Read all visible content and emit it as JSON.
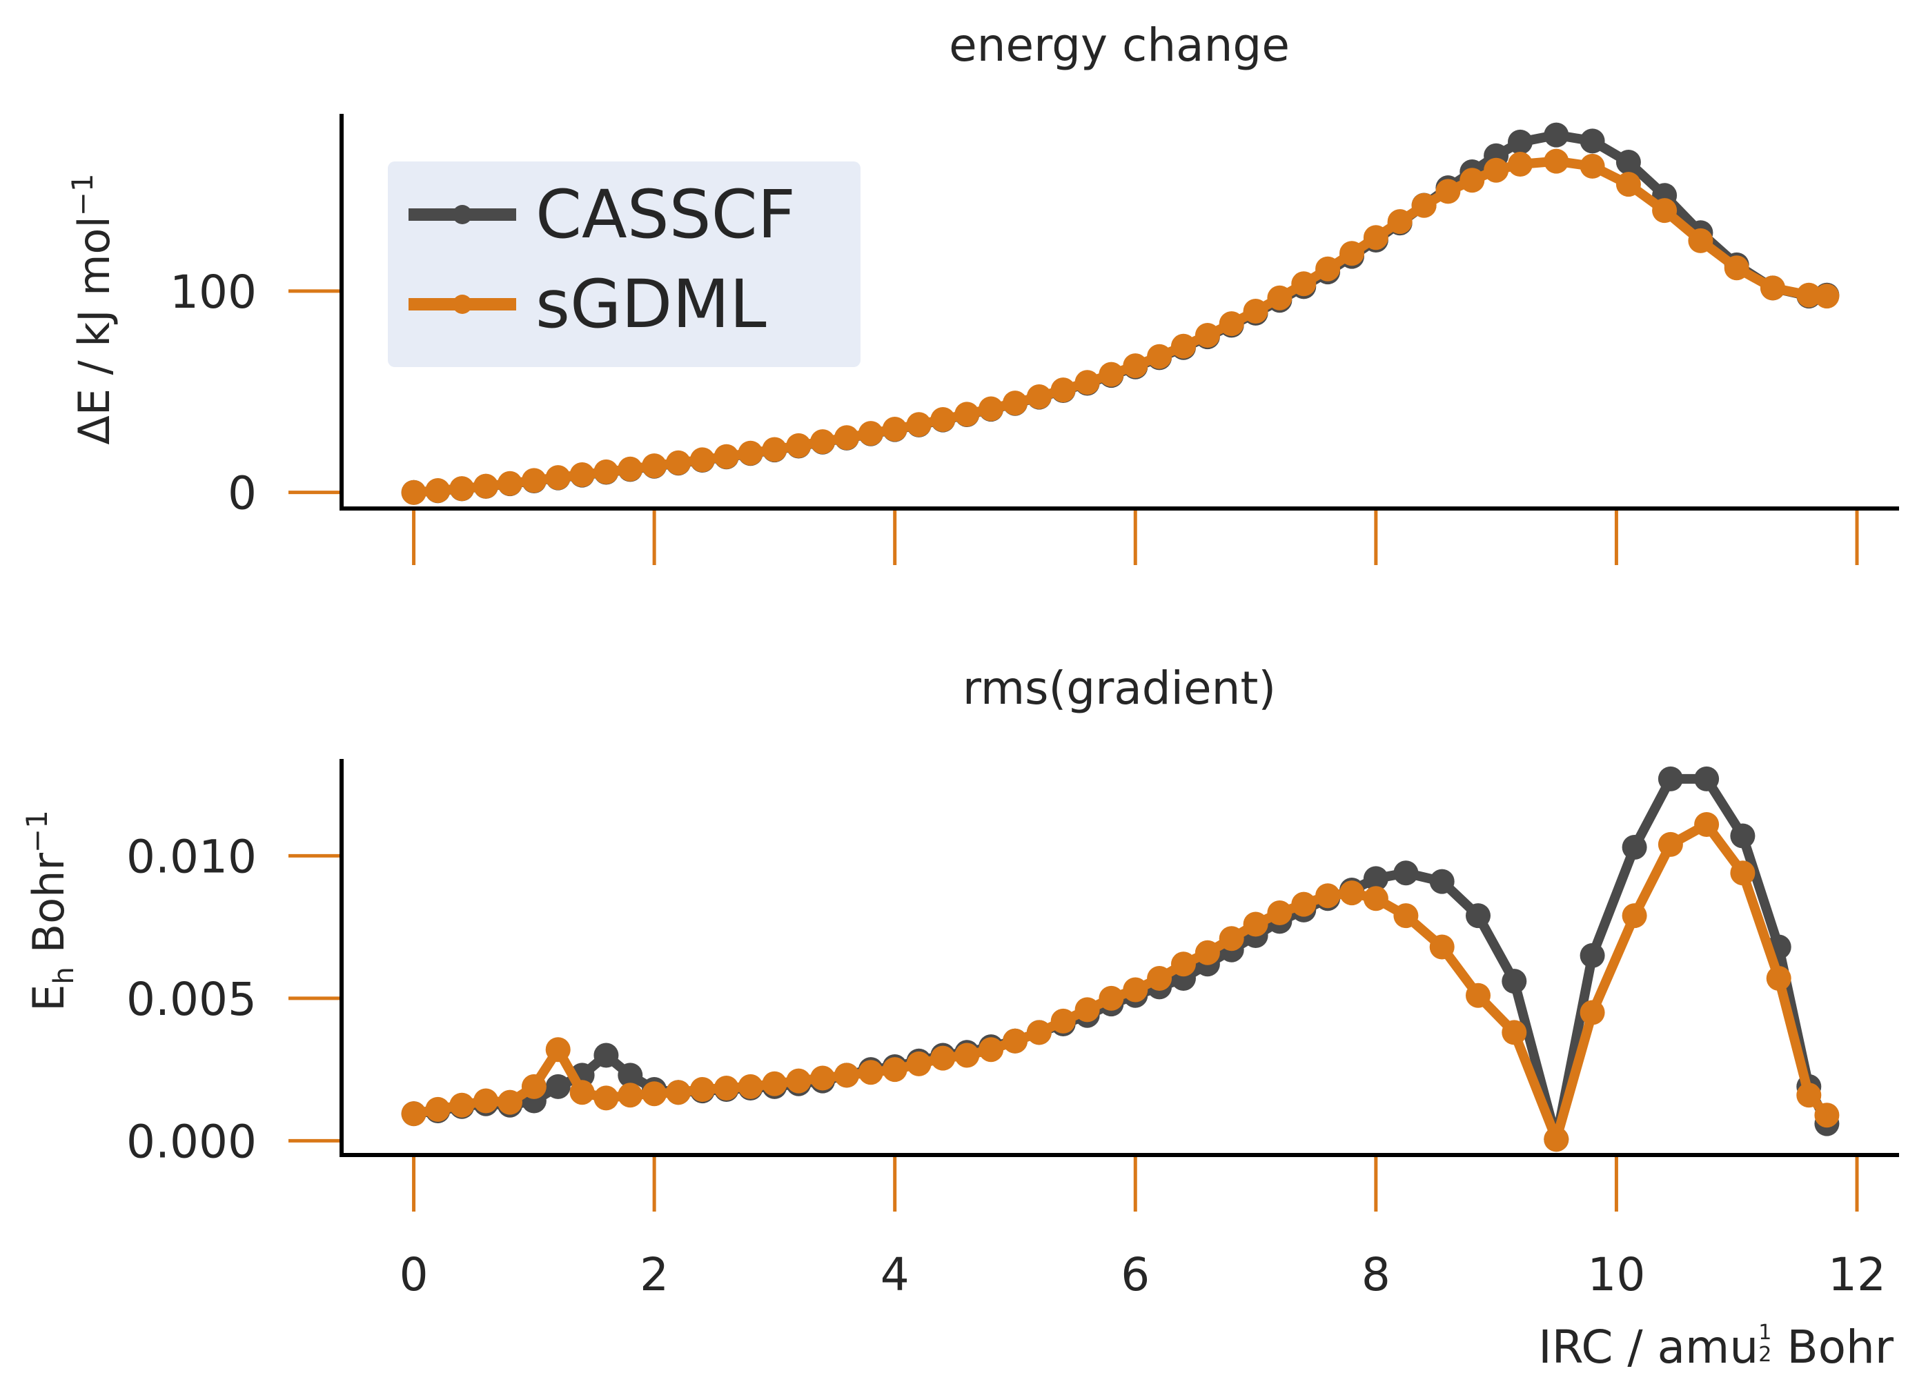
{
  "chart_data": [
    {
      "type": "line",
      "title": "energy change",
      "xlabel": "",
      "ylabel": "ΔE / kJ mol",
      "ylabel_sup": "−1",
      "xlim": [
        -0.6,
        12.35
      ],
      "ylim": [
        -8,
        188
      ],
      "xticks": [
        0,
        2,
        4,
        6,
        8,
        10,
        12
      ],
      "yticks": [
        0,
        100
      ],
      "ytick_labels": [
        "0",
        "100"
      ],
      "show_xtick_labels": false,
      "legend": {
        "placement": "top-left",
        "entries": [
          "CASSCF",
          "sGDML"
        ]
      },
      "series": [
        {
          "name": "CASSCF",
          "color": "#4a4a4a",
          "x": [
            0,
            0.2,
            0.4,
            0.6,
            0.8,
            1.0,
            1.2,
            1.4,
            1.6,
            1.8,
            2.0,
            2.2,
            2.4,
            2.6,
            2.8,
            3.0,
            3.2,
            3.4,
            3.6,
            3.8,
            4.0,
            4.2,
            4.4,
            4.6,
            4.8,
            5.0,
            5.2,
            5.4,
            5.6,
            5.8,
            6.0,
            6.2,
            6.4,
            6.6,
            6.8,
            7.0,
            7.2,
            7.4,
            7.6,
            7.8,
            8.0,
            8.2,
            8.4,
            8.6,
            8.8,
            9.0,
            9.2,
            9.5,
            9.8,
            10.1,
            10.4,
            10.7,
            11.0,
            11.3,
            11.6,
            11.75
          ],
          "y": [
            0,
            0.8,
            1.8,
            3,
            4.3,
            5.7,
            7.2,
            8.6,
            10,
            11.4,
            13,
            14.5,
            16,
            17.6,
            19.3,
            21.1,
            23,
            25,
            27,
            29.1,
            31.2,
            33.5,
            36,
            38.6,
            41.3,
            44.2,
            47.3,
            50.6,
            54.2,
            58.1,
            62.3,
            66.9,
            71.9,
            77.3,
            83,
            89,
            95.4,
            102.2,
            109.5,
            117.2,
            125.3,
            133.8,
            142.6,
            151.3,
            159.2,
            167.2,
            174,
            177.5,
            174.5,
            164,
            147.5,
            129,
            113,
            101.5,
            97.5,
            98
          ]
        },
        {
          "name": "sGDML",
          "color": "#d97818",
          "x": [
            0,
            0.2,
            0.4,
            0.6,
            0.8,
            1.0,
            1.2,
            1.4,
            1.6,
            1.8,
            2.0,
            2.2,
            2.4,
            2.6,
            2.8,
            3.0,
            3.2,
            3.4,
            3.6,
            3.8,
            4.0,
            4.2,
            4.4,
            4.6,
            4.8,
            5.0,
            5.2,
            5.4,
            5.6,
            5.8,
            6.0,
            6.2,
            6.4,
            6.6,
            6.8,
            7.0,
            7.2,
            7.4,
            7.6,
            7.8,
            8.0,
            8.2,
            8.4,
            8.6,
            8.8,
            9.0,
            9.2,
            9.5,
            9.8,
            10.1,
            10.4,
            10.7,
            11.0,
            11.3,
            11.6,
            11.75
          ],
          "y": [
            0,
            0.9,
            1.9,
            3.1,
            4.4,
            5.9,
            7.4,
            8.8,
            10.2,
            11.6,
            13.2,
            14.7,
            16.2,
            17.8,
            19.5,
            21.3,
            23.2,
            25.2,
            27.2,
            29.3,
            31.4,
            33.7,
            36.2,
            38.8,
            41.5,
            44.4,
            47.5,
            50.9,
            54.6,
            58.6,
            62.9,
            67.5,
            72.6,
            78,
            83.8,
            90,
            96.6,
            103.6,
            111,
            118.7,
            126.6,
            134.5,
            142.5,
            149.5,
            155,
            160,
            163,
            164.5,
            162,
            153,
            140,
            125,
            111.5,
            101.5,
            98,
            97.5
          ]
        }
      ]
    },
    {
      "type": "line",
      "title": "rms(gradient)",
      "xlabel": "IRC / amu",
      "xlabel_frac_num": "1",
      "xlabel_frac_den": "2",
      "xlabel_suffix": "Bohr",
      "ylabel": "E",
      "ylabel_sub": "h",
      "ylabel_rest": "Bohr",
      "ylabel_sup": "−1",
      "xlim": [
        -0.6,
        12.35
      ],
      "ylim": [
        -0.0005,
        0.0134
      ],
      "xticks": [
        0,
        2,
        4,
        6,
        8,
        10,
        12
      ],
      "xtick_labels": [
        "0",
        "2",
        "4",
        "6",
        "8",
        "10",
        "12"
      ],
      "yticks": [
        0,
        0.005,
        0.01
      ],
      "ytick_labels": [
        "0.000",
        "0.005",
        "0.010"
      ],
      "series": [
        {
          "name": "CASSCF",
          "color": "#4a4a4a",
          "x": [
            0,
            0.2,
            0.4,
            0.6,
            0.8,
            1.0,
            1.2,
            1.4,
            1.6,
            1.8,
            2.0,
            2.2,
            2.4,
            2.6,
            2.8,
            3.0,
            3.2,
            3.4,
            3.6,
            3.8,
            4.0,
            4.2,
            4.4,
            4.6,
            4.8,
            5.0,
            5.2,
            5.4,
            5.6,
            5.8,
            6.0,
            6.2,
            6.4,
            6.6,
            6.8,
            7.0,
            7.2,
            7.4,
            7.6,
            7.8,
            8.0,
            8.25,
            8.55,
            8.85,
            9.15,
            9.5,
            9.8,
            10.15,
            10.45,
            10.75,
            11.05,
            11.35,
            11.6,
            11.75
          ],
          "y": [
            0.00095,
            0.00105,
            0.0012,
            0.0013,
            0.00125,
            0.0014,
            0.0019,
            0.0023,
            0.003,
            0.0023,
            0.0018,
            0.0017,
            0.00175,
            0.0018,
            0.00185,
            0.0019,
            0.002,
            0.0021,
            0.0023,
            0.0025,
            0.0026,
            0.0028,
            0.003,
            0.0031,
            0.0033,
            0.0035,
            0.0038,
            0.0041,
            0.0044,
            0.0048,
            0.0051,
            0.0054,
            0.0057,
            0.0062,
            0.0067,
            0.0072,
            0.0077,
            0.0081,
            0.0085,
            0.0088,
            0.0092,
            0.0094,
            0.0091,
            0.0079,
            0.0056,
            5e-05,
            0.0065,
            0.0103,
            0.0127,
            0.0127,
            0.0107,
            0.0068,
            0.0019,
            0.0006
          ]
        },
        {
          "name": "sGDML",
          "color": "#d97818",
          "x": [
            0,
            0.2,
            0.4,
            0.6,
            0.8,
            1.0,
            1.2,
            1.4,
            1.6,
            1.8,
            2.0,
            2.2,
            2.4,
            2.6,
            2.8,
            3.0,
            3.2,
            3.4,
            3.6,
            3.8,
            4.0,
            4.2,
            4.4,
            4.6,
            4.8,
            5.0,
            5.2,
            5.4,
            5.6,
            5.8,
            6.0,
            6.2,
            6.4,
            6.6,
            6.8,
            7.0,
            7.2,
            7.4,
            7.6,
            7.8,
            8.0,
            8.25,
            8.55,
            8.85,
            9.15,
            9.5,
            9.8,
            10.15,
            10.45,
            10.75,
            11.05,
            11.35,
            11.6,
            11.75
          ],
          "y": [
            0.00095,
            0.0011,
            0.00125,
            0.0014,
            0.00135,
            0.0019,
            0.0032,
            0.0017,
            0.0015,
            0.0016,
            0.00165,
            0.0017,
            0.0018,
            0.00185,
            0.0019,
            0.002,
            0.0021,
            0.0022,
            0.0023,
            0.0024,
            0.0025,
            0.0027,
            0.0029,
            0.003,
            0.0032,
            0.0035,
            0.0038,
            0.0042,
            0.0046,
            0.005,
            0.0053,
            0.0057,
            0.0062,
            0.0066,
            0.0071,
            0.0076,
            0.008,
            0.0083,
            0.0086,
            0.0087,
            0.0085,
            0.0079,
            0.0068,
            0.0051,
            0.0038,
            5e-05,
            0.0045,
            0.0079,
            0.0104,
            0.0111,
            0.0094,
            0.0057,
            0.0016,
            0.0009
          ]
        }
      ]
    }
  ]
}
